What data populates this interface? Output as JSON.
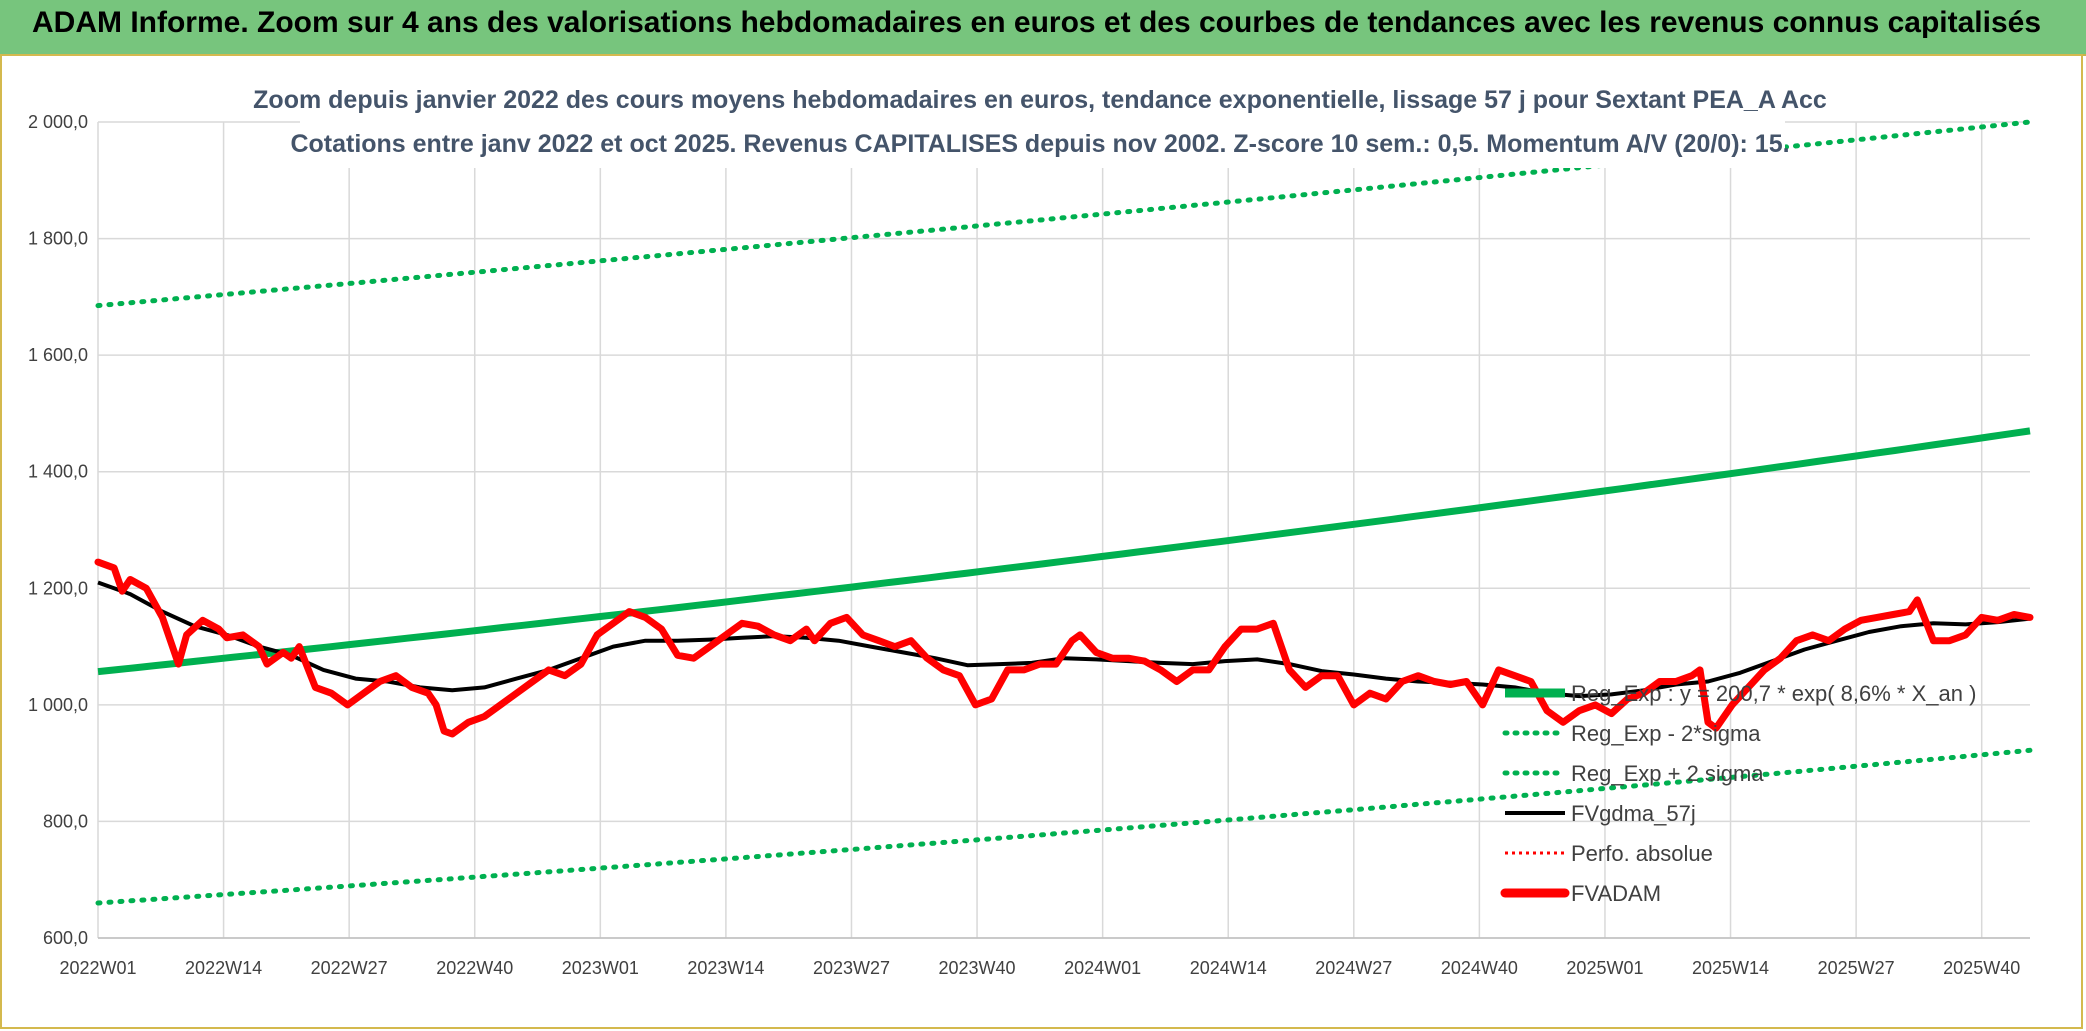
{
  "banner": {
    "title": "ADAM Informe. Zoom sur 4 ans des valorisations hebdomadaires en euros et des courbes de tendances avec les revenus connus capitalisés"
  },
  "chart_data": {
    "type": "line",
    "title_lines": [
      "Zoom depuis janvier 2022 des cours moyens hebdomadaires en euros, tendance exponentielle, lissage 57 j pour Sextant PEA_A Acc",
      "Cotations entre janv 2022 et oct 2025. Revenus CAPITALISES depuis nov 2002. Z-score 10 sem.: 0,5. Momentum A/V (20/0): 15."
    ],
    "ylim": [
      600,
      2000
    ],
    "y_ticks": [
      "600,0",
      "800,0",
      "1 000,0",
      "1 200,0",
      "1 400,0",
      "1 600,0",
      "1 800,0",
      "2 000,0"
    ],
    "y_tick_values": [
      600,
      800,
      1000,
      1200,
      1400,
      1600,
      1800,
      2000
    ],
    "x_tick_labels": [
      "2022W01",
      "2022W14",
      "2022W27",
      "2022W40",
      "2023W01",
      "2023W14",
      "2023W27",
      "2023W40",
      "2024W01",
      "2024W14",
      "2024W27",
      "2024W40",
      "2025W01",
      "2025W14",
      "2025W27",
      "2025W40"
    ],
    "x_tick_weeks": [
      0,
      13,
      26,
      39,
      52,
      65,
      78,
      91,
      104,
      117,
      130,
      143,
      156,
      169,
      182,
      195
    ],
    "n_weeks": 201,
    "grid": true,
    "legend_position": "bottom-right",
    "trend": {
      "start": 1057,
      "end": 1470
    },
    "band_lower": {
      "start": 660,
      "end": 922
    },
    "band_upper": {
      "start": 1685,
      "end": 2000
    },
    "series_fvadam_anchors": [
      [
        0,
        1245
      ],
      [
        2,
        1235
      ],
      [
        3,
        1195
      ],
      [
        4,
        1215
      ],
      [
        6,
        1200
      ],
      [
        8,
        1150
      ],
      [
        10,
        1070
      ],
      [
        11,
        1120
      ],
      [
        13,
        1145
      ],
      [
        15,
        1130
      ],
      [
        16,
        1115
      ],
      [
        18,
        1120
      ],
      [
        20,
        1100
      ],
      [
        21,
        1070
      ],
      [
        23,
        1090
      ],
      [
        24,
        1080
      ],
      [
        25,
        1100
      ],
      [
        27,
        1030
      ],
      [
        29,
        1020
      ],
      [
        31,
        1000
      ],
      [
        33,
        1020
      ],
      [
        35,
        1040
      ],
      [
        37,
        1050
      ],
      [
        39,
        1030
      ],
      [
        41,
        1020
      ],
      [
        42,
        1000
      ],
      [
        43,
        955
      ],
      [
        44,
        950
      ],
      [
        46,
        970
      ],
      [
        48,
        980
      ],
      [
        50,
        1000
      ],
      [
        52,
        1020
      ],
      [
        54,
        1040
      ],
      [
        56,
        1060
      ],
      [
        58,
        1050
      ],
      [
        60,
        1070
      ],
      [
        62,
        1120
      ],
      [
        64,
        1140
      ],
      [
        66,
        1160
      ],
      [
        68,
        1150
      ],
      [
        70,
        1130
      ],
      [
        72,
        1085
      ],
      [
        74,
        1080
      ],
      [
        76,
        1100
      ],
      [
        78,
        1120
      ],
      [
        80,
        1140
      ],
      [
        82,
        1135
      ],
      [
        84,
        1120
      ],
      [
        86,
        1110
      ],
      [
        88,
        1130
      ],
      [
        89,
        1110
      ],
      [
        91,
        1140
      ],
      [
        93,
        1150
      ],
      [
        95,
        1120
      ],
      [
        97,
        1110
      ],
      [
        99,
        1100
      ],
      [
        101,
        1110
      ],
      [
        103,
        1080
      ],
      [
        105,
        1060
      ],
      [
        107,
        1050
      ],
      [
        109,
        1000
      ],
      [
        111,
        1010
      ],
      [
        113,
        1060
      ],
      [
        115,
        1060
      ],
      [
        117,
        1070
      ],
      [
        119,
        1070
      ],
      [
        121,
        1110
      ],
      [
        122,
        1120
      ],
      [
        124,
        1090
      ],
      [
        126,
        1080
      ],
      [
        128,
        1080
      ],
      [
        130,
        1075
      ],
      [
        132,
        1060
      ],
      [
        134,
        1040
      ],
      [
        136,
        1060
      ],
      [
        138,
        1060
      ],
      [
        140,
        1100
      ],
      [
        142,
        1130
      ],
      [
        144,
        1130
      ],
      [
        146,
        1140
      ],
      [
        148,
        1060
      ],
      [
        150,
        1030
      ],
      [
        152,
        1050
      ],
      [
        154,
        1050
      ],
      [
        156,
        1000
      ],
      [
        158,
        1020
      ],
      [
        160,
        1010
      ],
      [
        162,
        1040
      ],
      [
        164,
        1050
      ],
      [
        166,
        1040
      ],
      [
        168,
        1035
      ],
      [
        170,
        1040
      ],
      [
        172,
        1000
      ],
      [
        174,
        1060
      ],
      [
        176,
        1050
      ],
      [
        178,
        1040
      ],
      [
        180,
        990
      ],
      [
        182,
        970
      ],
      [
        184,
        990
      ],
      [
        186,
        1000
      ],
      [
        188,
        985
      ],
      [
        190,
        1010
      ],
      [
        192,
        1020
      ],
      [
        194,
        1040
      ],
      [
        196,
        1040
      ],
      [
        198,
        1050
      ],
      [
        199,
        1060
      ],
      [
        200,
        970
      ],
      [
        201,
        960
      ],
      [
        203,
        1000
      ],
      [
        205,
        1030
      ],
      [
        207,
        1060
      ],
      [
        209,
        1080
      ],
      [
        211,
        1110
      ],
      [
        213,
        1120
      ],
      [
        215,
        1110
      ],
      [
        217,
        1130
      ],
      [
        219,
        1145
      ],
      [
        221,
        1150
      ],
      [
        223,
        1155
      ],
      [
        225,
        1160
      ],
      [
        226,
        1180
      ],
      [
        228,
        1110
      ],
      [
        230,
        1110
      ],
      [
        232,
        1120
      ],
      [
        234,
        1150
      ],
      [
        236,
        1145
      ],
      [
        238,
        1155
      ],
      [
        240,
        1150
      ]
    ],
    "series_fvgdma_anchors": [
      [
        0,
        1210
      ],
      [
        4,
        1190
      ],
      [
        8,
        1160
      ],
      [
        12,
        1135
      ],
      [
        16,
        1120
      ],
      [
        20,
        1100
      ],
      [
        24,
        1085
      ],
      [
        28,
        1060
      ],
      [
        32,
        1045
      ],
      [
        36,
        1040
      ],
      [
        40,
        1030
      ],
      [
        44,
        1025
      ],
      [
        48,
        1030
      ],
      [
        52,
        1045
      ],
      [
        56,
        1060
      ],
      [
        60,
        1080
      ],
      [
        64,
        1100
      ],
      [
        68,
        1110
      ],
      [
        72,
        1110
      ],
      [
        76,
        1112
      ],
      [
        80,
        1115
      ],
      [
        84,
        1118
      ],
      [
        88,
        1115
      ],
      [
        92,
        1110
      ],
      [
        96,
        1100
      ],
      [
        100,
        1090
      ],
      [
        104,
        1080
      ],
      [
        108,
        1068
      ],
      [
        112,
        1070
      ],
      [
        116,
        1072
      ],
      [
        120,
        1080
      ],
      [
        124,
        1078
      ],
      [
        128,
        1075
      ],
      [
        132,
        1072
      ],
      [
        136,
        1070
      ],
      [
        140,
        1075
      ],
      [
        144,
        1078
      ],
      [
        148,
        1070
      ],
      [
        152,
        1058
      ],
      [
        156,
        1052
      ],
      [
        160,
        1045
      ],
      [
        164,
        1040
      ],
      [
        168,
        1038
      ],
      [
        172,
        1035
      ],
      [
        176,
        1030
      ],
      [
        180,
        1020
      ],
      [
        184,
        1015
      ],
      [
        188,
        1018
      ],
      [
        192,
        1025
      ],
      [
        196,
        1035
      ],
      [
        200,
        1040
      ],
      [
        204,
        1055
      ],
      [
        208,
        1075
      ],
      [
        212,
        1095
      ],
      [
        216,
        1110
      ],
      [
        220,
        1125
      ],
      [
        224,
        1135
      ],
      [
        228,
        1140
      ],
      [
        232,
        1138
      ],
      [
        236,
        1142
      ],
      [
        240,
        1148
      ]
    ],
    "anchor_scale": 240,
    "legend": [
      {
        "label": "Reg_Exp : y = 200,7 * exp( 8,6% *  X_an )",
        "style": "solid-green"
      },
      {
        "label": "Reg_Exp - 2*sigma",
        "style": "dotted-green"
      },
      {
        "label": "Reg_Exp + 2 sigma",
        "style": "dotted-green"
      },
      {
        "label": "FVgdma_57j",
        "style": "solid-black"
      },
      {
        "label": "Perfo. absolue",
        "style": "dotted-red"
      },
      {
        "label": "FVADAM",
        "style": "thick-red"
      }
    ],
    "colors": {
      "trend": "#00b050",
      "bands": "#00b050",
      "smooth": "#000000",
      "price": "#ff0000",
      "perf": "#ff0000",
      "grid": "#d9d9d9",
      "frame": "#d4b94e"
    }
  }
}
